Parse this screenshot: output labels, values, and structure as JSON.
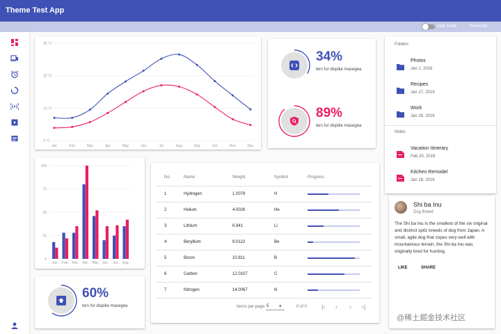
{
  "app": {
    "title": "Theme Test App",
    "dark_mode_label": "dark mode",
    "theme_list_label": "theme list"
  },
  "nav": {
    "icons": [
      "dashboard-icon",
      "devices-icon",
      "alarm-icon",
      "loop-icon",
      "wireless-icon",
      "video-library-icon",
      "notes-icon",
      "account-icon"
    ]
  },
  "colors": {
    "primary": "#3f51b5",
    "accent": "#e91e63",
    "light_primary": "#c5cae9"
  },
  "chart_data": [
    {
      "type": "line",
      "categories": [
        "Jan",
        "Feb",
        "Mar",
        "Apr",
        "May",
        "Jun",
        "Jul",
        "Aug",
        "Sep",
        "Oct",
        "Nov",
        "Dec"
      ],
      "series": [
        {
          "values": [
            7,
            7,
            9.5,
            14.5,
            18.2,
            21.5,
            25.2,
            26.5,
            23.3,
            18.3,
            13.9,
            9.6
          ],
          "color": "#3f51b5"
        },
        {
          "values": [
            3.9,
            4.2,
            5.7,
            8.5,
            11.9,
            15.2,
            17,
            16.6,
            14.2,
            10.3,
            6.6,
            4.8
          ],
          "color": "#e91e63"
        }
      ],
      "y_ticks": [
        "0 °C",
        "10 °C",
        "20 °C",
        "30 °C"
      ],
      "ylim": [
        0,
        30
      ],
      "grid": true
    },
    {
      "type": "bar",
      "categories": [
        "Jan.",
        "Feb.",
        "Mar.",
        "Apr.",
        "May",
        "Jun.",
        "Jul.",
        "Aug."
      ],
      "series": [
        {
          "values": [
            18,
            28,
            28,
            80,
            46,
            20,
            25,
            35
          ],
          "color": "#3f51b5"
        },
        {
          "values": [
            12,
            22,
            35,
            100,
            52,
            35,
            36,
            42
          ],
          "color": "#e91e63"
        }
      ],
      "y_ticks": [
        "0",
        "25",
        "50",
        "75",
        "100"
      ],
      "ylim": [
        0,
        100
      ],
      "grid": true
    }
  ],
  "stats": [
    {
      "value": "34%",
      "label": "ters fur dispike masegea",
      "progress": 0.34,
      "color": "#3f51b5",
      "icon": "code-icon"
    },
    {
      "value": "89%",
      "label": "ters fur dispike masegea",
      "progress": 0.89,
      "color": "#e91e63",
      "icon": "search-icon"
    },
    {
      "value": "60%",
      "label": "ters fur dispike masegea",
      "progress": 0.6,
      "color": "#3f51b5",
      "icon": "inbox-icon"
    }
  ],
  "table": {
    "headers": [
      "No.",
      "Name",
      "Weight",
      "Symbol",
      "Progress"
    ],
    "rows": [
      {
        "no": "1",
        "name": "Hydrogen",
        "weight": "1.0079",
        "symbol": "H",
        "progress": 0.4
      },
      {
        "no": "2",
        "name": "Helium",
        "weight": "4.0026",
        "symbol": "He",
        "progress": 0.6
      },
      {
        "no": "3",
        "name": "Lithium",
        "weight": "6.941",
        "symbol": "Li",
        "progress": 0.3
      },
      {
        "no": "4",
        "name": "Beryllium",
        "weight": "9.0122",
        "symbol": "Be",
        "progress": 0.1
      },
      {
        "no": "5",
        "name": "Boron",
        "weight": "10.811",
        "symbol": "B",
        "progress": 0.9
      },
      {
        "no": "6",
        "name": "Carbon",
        "weight": "12.0107",
        "symbol": "C",
        "progress": 0.7
      },
      {
        "no": "7",
        "name": "Nitrogen",
        "weight": "14.0067",
        "symbol": "N",
        "progress": 0.2
      }
    ],
    "items_per_page_label": "Items per page:",
    "page_size": "5",
    "range_label": "0 of 0"
  },
  "folders": {
    "header": "Folders",
    "items": [
      {
        "title": "Photos",
        "date": "Jan 1, 2016"
      },
      {
        "title": "Recipes",
        "date": "Jan 17, 2016"
      },
      {
        "title": "Work",
        "date": "Jan 28, 2016"
      }
    ]
  },
  "notes": {
    "header": "Notes",
    "items": [
      {
        "title": "Vacation Itinerary",
        "date": "Feb 20, 2016"
      },
      {
        "title": "Kitchen Remodel",
        "date": "Jan 18, 2016"
      }
    ]
  },
  "dog_card": {
    "title": "Shi ba Inu",
    "subtitle": "Dog Breed",
    "body": "The Shi ba Inu is the smallest of the six original and distinct spitz breeds of dog from Japan. A small, agile dog that copes very well with mountainous terrain, the Shi ba Inu was originally bred for hunting.",
    "like_label": "LIKE",
    "share_label": "SHARE"
  },
  "watermark": "@稀土掘金技术社区"
}
